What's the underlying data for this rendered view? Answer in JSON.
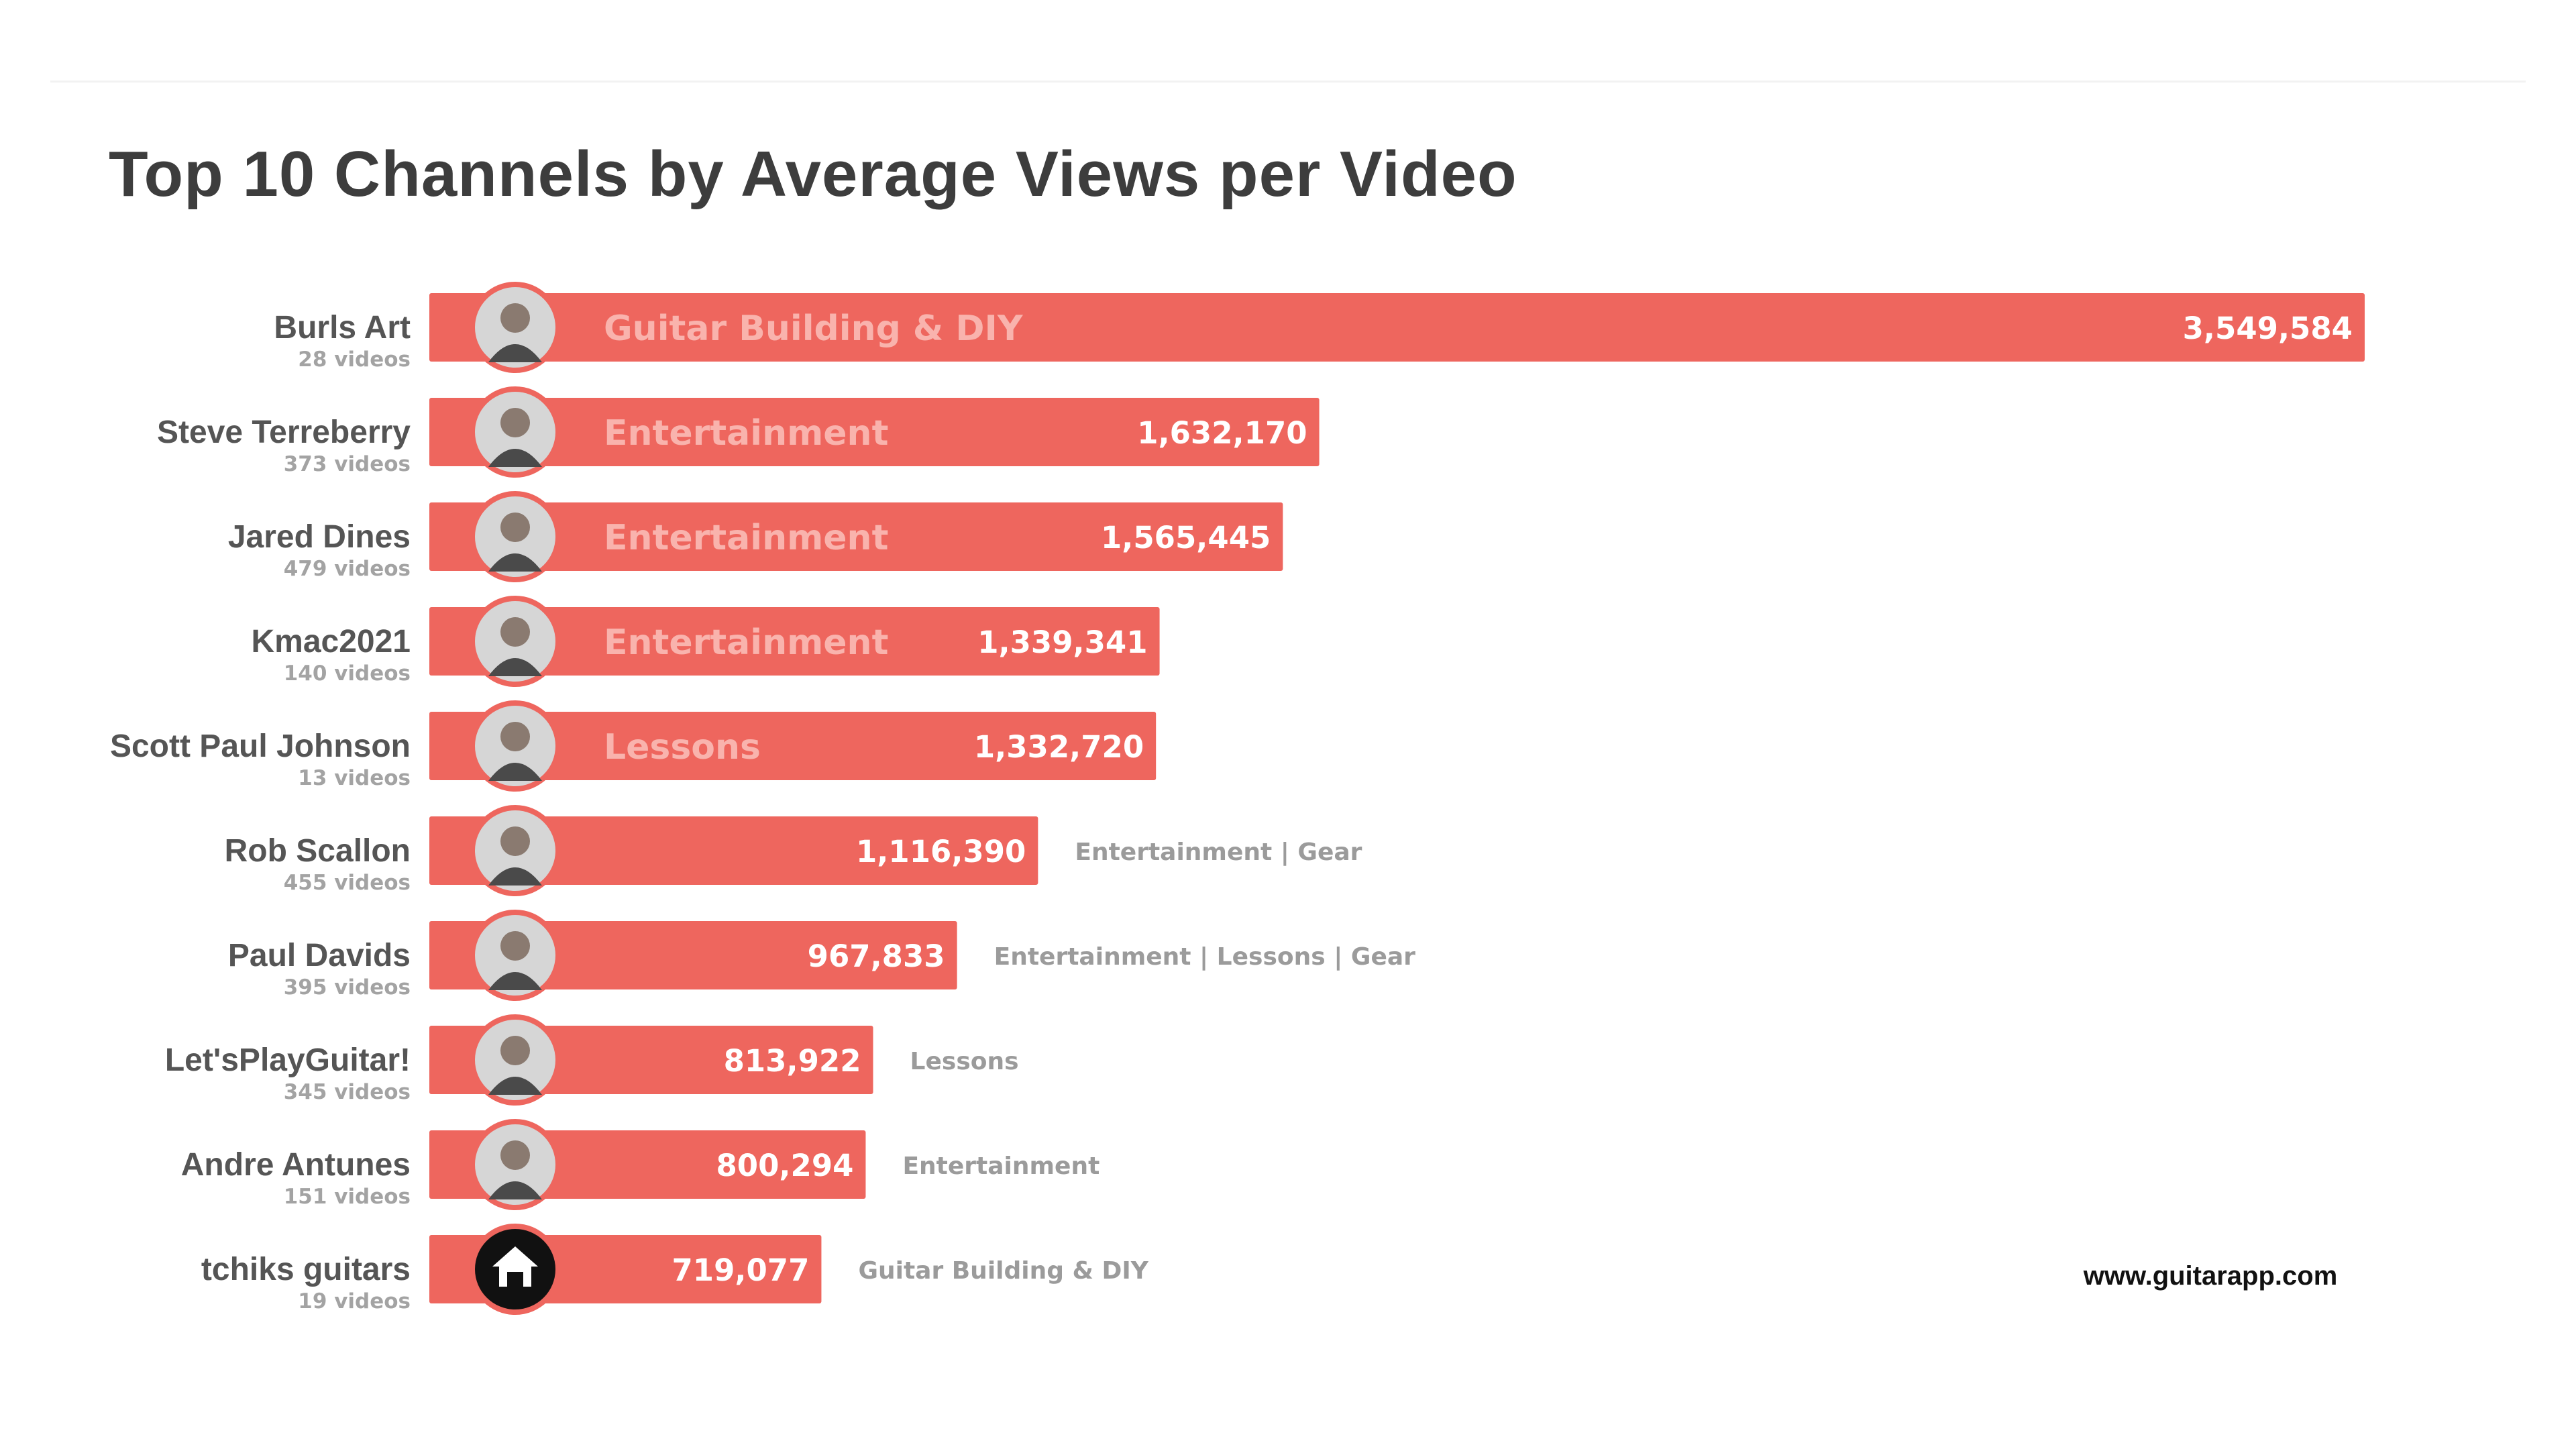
{
  "colors": {
    "bar": "#ee665e",
    "bar_inner_label": "#f9b3ad",
    "value_label": "#ffffff",
    "outside_label": "#9b9b9b",
    "channel_name": "#555555",
    "video_count": "#a3a3a3",
    "title": "#3d3d3d",
    "avatar_ring": "#ee665e"
  },
  "watermark": "www.guitarapp.com",
  "chart_data": {
    "type": "bar",
    "orientation": "horizontal",
    "title": "Top 10 Channels by Average Views per Video",
    "xlabel": "",
    "ylabel": "",
    "xlim": [
      0,
      3549584
    ],
    "grid": false,
    "legend": "none",
    "series": [
      {
        "values": [
          3549584,
          1632170,
          1565445,
          1339341,
          1332720,
          1116390,
          967833,
          813922,
          800294,
          719077
        ],
        "value_labels": [
          "3,549,584",
          "1,632,170",
          "1,565,445",
          "1,339,341",
          "1,332,720",
          "1,116,390",
          "967,833",
          "813,922",
          "800,294",
          "719,077"
        ]
      }
    ],
    "categories": [
      "Burls Art",
      "Steve Terreberry",
      "Jared Dines",
      "Kmac2021",
      "Scott Paul Johnson",
      "Rob Scallon",
      "Paul Davids",
      "Let'sPlayGuitar!",
      "Andre Antunes",
      "tchiks guitars"
    ],
    "video_counts": [
      "28 videos",
      "373 videos",
      "479 videos",
      "140 videos",
      "13 videos",
      "455 videos",
      "395 videos",
      "345 videos",
      "151 videos",
      "19 videos"
    ],
    "genres": [
      "Guitar Building & DIY",
      "Entertainment",
      "Entertainment",
      "Entertainment",
      "Lessons",
      "Entertainment | Gear",
      "Entertainment | Lessons | Gear",
      "Lessons",
      "Entertainment",
      "Guitar Building & DIY"
    ],
    "avatars": [
      "avatar-photo-icon",
      "avatar-photo-icon",
      "avatar-photo-icon",
      "avatar-photo-icon",
      "avatar-photo-icon",
      "avatar-photo-icon",
      "avatar-photo-icon",
      "avatar-photo-icon",
      "avatar-photo-icon",
      "house-logo-icon"
    ]
  }
}
